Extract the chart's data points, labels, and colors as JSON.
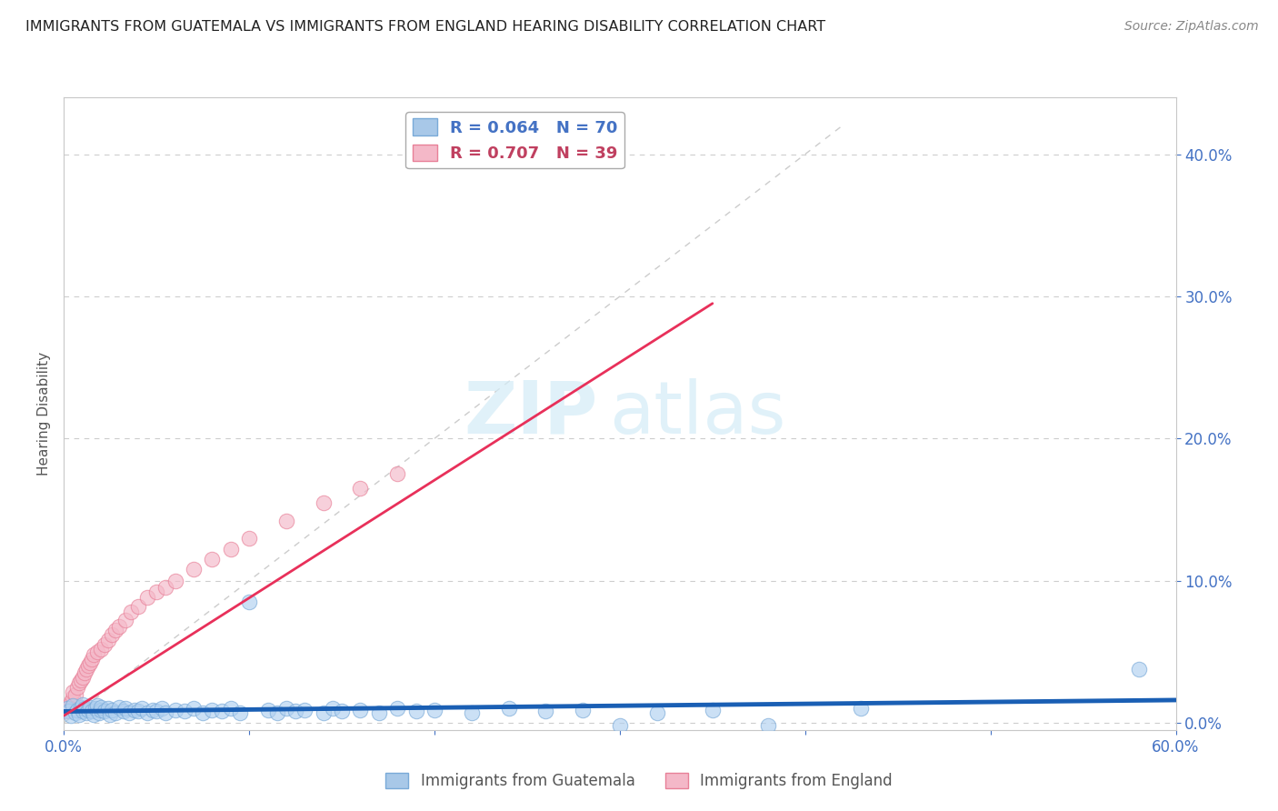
{
  "title": "IMMIGRANTS FROM GUATEMALA VS IMMIGRANTS FROM ENGLAND HEARING DISABILITY CORRELATION CHART",
  "source": "Source: ZipAtlas.com",
  "ylabel": "Hearing Disability",
  "xmin": 0.0,
  "xmax": 0.6,
  "ymin": -0.005,
  "ymax": 0.44,
  "yticks": [
    0.0,
    0.1,
    0.2,
    0.3,
    0.4
  ],
  "xticks": [
    0.0,
    0.6
  ],
  "legend1_label": "R = 0.064   N = 70",
  "legend2_label": "R = 0.707   N = 39",
  "legend_color1": "#a8c8e8",
  "legend_color2": "#f4a0b0",
  "watermark_zip": "ZIP",
  "watermark_atlas": "atlas",
  "blue_scatter_x": [
    0.002,
    0.003,
    0.004,
    0.005,
    0.006,
    0.007,
    0.008,
    0.009,
    0.01,
    0.01,
    0.011,
    0.012,
    0.013,
    0.014,
    0.015,
    0.016,
    0.017,
    0.018,
    0.019,
    0.02,
    0.02,
    0.022,
    0.024,
    0.025,
    0.026,
    0.028,
    0.03,
    0.032,
    0.033,
    0.035,
    0.038,
    0.04,
    0.042,
    0.045,
    0.048,
    0.05,
    0.053,
    0.055,
    0.06,
    0.065,
    0.07,
    0.075,
    0.08,
    0.085,
    0.09,
    0.095,
    0.1,
    0.11,
    0.115,
    0.12,
    0.125,
    0.13,
    0.14,
    0.145,
    0.15,
    0.16,
    0.17,
    0.18,
    0.19,
    0.2,
    0.22,
    0.24,
    0.26,
    0.28,
    0.3,
    0.32,
    0.35,
    0.38,
    0.43,
    0.58
  ],
  "blue_scatter_y": [
    0.01,
    0.008,
    0.005,
    0.012,
    0.007,
    0.009,
    0.006,
    0.011,
    0.008,
    0.013,
    0.01,
    0.007,
    0.009,
    0.011,
    0.008,
    0.006,
    0.01,
    0.012,
    0.007,
    0.009,
    0.011,
    0.008,
    0.01,
    0.006,
    0.009,
    0.007,
    0.011,
    0.008,
    0.01,
    0.007,
    0.009,
    0.008,
    0.01,
    0.007,
    0.009,
    0.008,
    0.01,
    0.007,
    0.009,
    0.008,
    0.01,
    0.007,
    0.009,
    0.008,
    0.01,
    0.007,
    0.085,
    0.009,
    0.007,
    0.01,
    0.008,
    0.009,
    0.007,
    0.01,
    0.008,
    0.009,
    0.007,
    0.01,
    0.008,
    0.009,
    0.007,
    0.01,
    0.008,
    0.009,
    -0.002,
    0.007,
    0.009,
    -0.002,
    0.01,
    0.038
  ],
  "pink_scatter_x": [
    0.001,
    0.002,
    0.003,
    0.004,
    0.005,
    0.005,
    0.006,
    0.007,
    0.008,
    0.009,
    0.01,
    0.011,
    0.012,
    0.013,
    0.014,
    0.015,
    0.016,
    0.018,
    0.02,
    0.022,
    0.024,
    0.026,
    0.028,
    0.03,
    0.033,
    0.036,
    0.04,
    0.045,
    0.05,
    0.055,
    0.06,
    0.07,
    0.08,
    0.09,
    0.1,
    0.12,
    0.14,
    0.16,
    0.18
  ],
  "pink_scatter_y": [
    0.008,
    0.01,
    0.012,
    0.015,
    0.018,
    0.022,
    0.02,
    0.025,
    0.028,
    0.03,
    0.032,
    0.035,
    0.038,
    0.04,
    0.042,
    0.045,
    0.048,
    0.05,
    0.052,
    0.055,
    0.058,
    0.062,
    0.065,
    0.068,
    0.072,
    0.078,
    0.082,
    0.088,
    0.092,
    0.095,
    0.1,
    0.108,
    0.115,
    0.122,
    0.13,
    0.142,
    0.155,
    0.165,
    0.175
  ],
  "blue_line_x": [
    0.0,
    0.6
  ],
  "blue_line_y": [
    0.008,
    0.016
  ],
  "pink_line_x": [
    0.0,
    0.35
  ],
  "pink_line_y": [
    0.005,
    0.295
  ],
  "ref_line_x": [
    0.0,
    0.42
  ],
  "ref_line_y": [
    0.0,
    0.42
  ],
  "grid_dashes": [
    4,
    4
  ]
}
